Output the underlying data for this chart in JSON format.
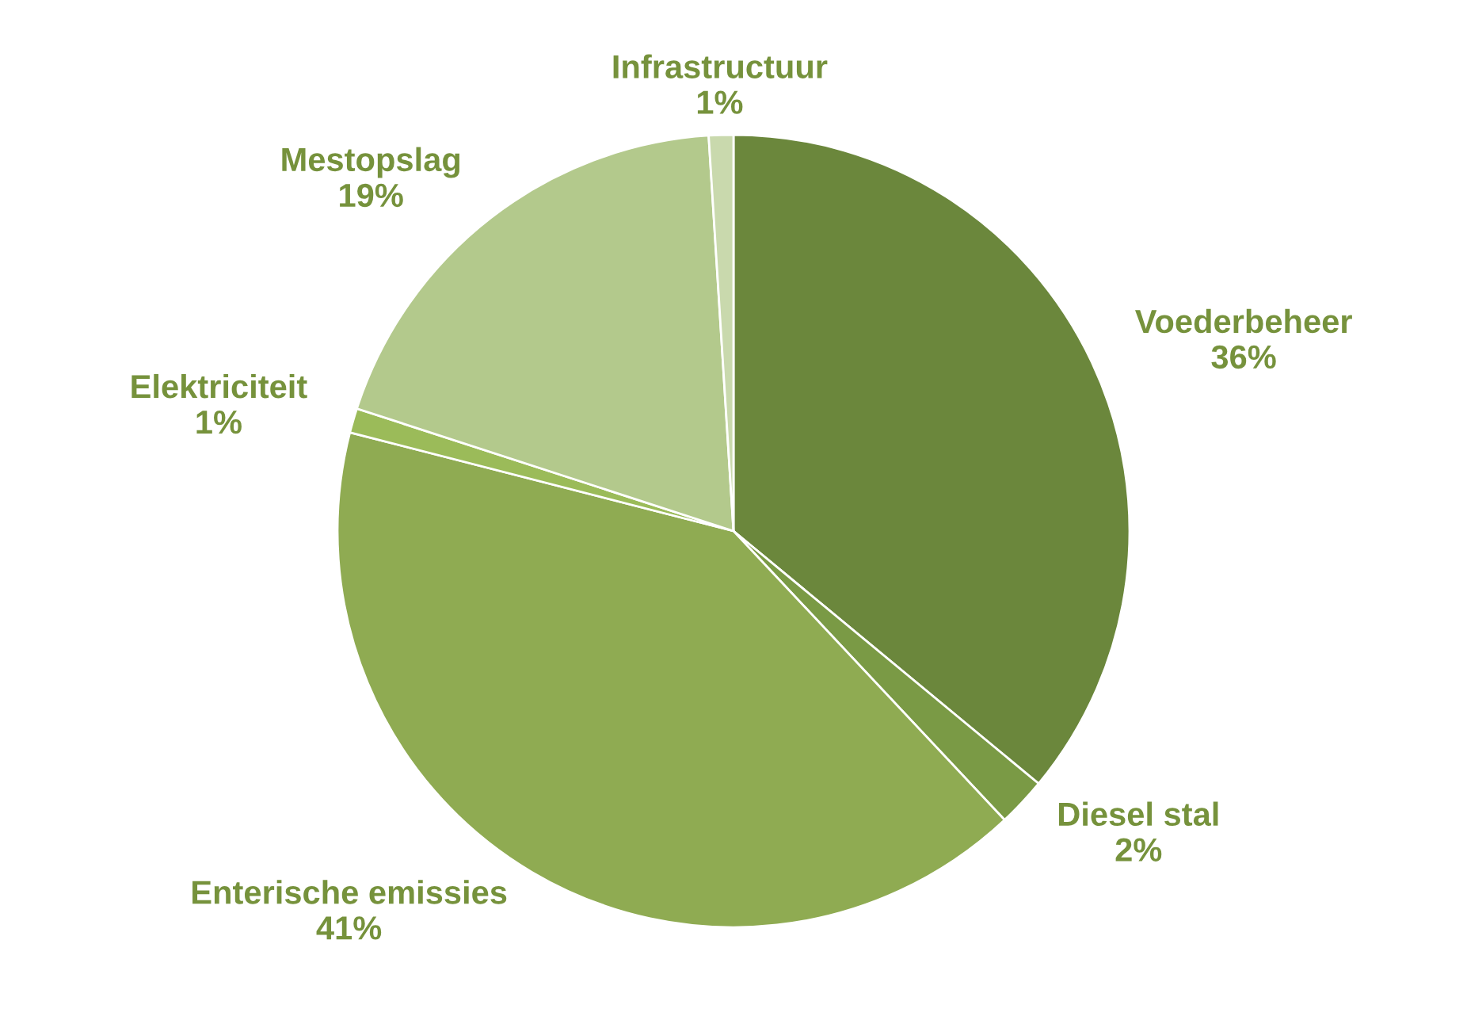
{
  "chart_data": {
    "type": "pie",
    "categories": [
      "Voederbeheer",
      "Diesel stal",
      "Enterische emissies",
      "Elektriciteit",
      "Mestopslag",
      "Infrastructuur"
    ],
    "values": [
      36,
      2,
      41,
      1,
      19,
      1
    ],
    "colors": [
      "#6b873c",
      "#7a9a45",
      "#8fab52",
      "#9bbb59",
      "#b3c98c",
      "#c9d9ad"
    ],
    "value_labels": [
      "36%",
      "2%",
      "41%",
      "1%",
      "19%",
      "1%"
    ]
  }
}
